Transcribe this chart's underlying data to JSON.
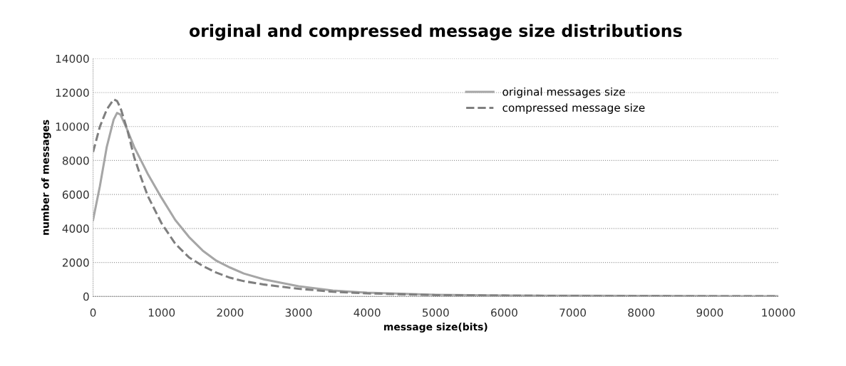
{
  "chart_data": {
    "type": "line",
    "title": "original and compressed message size distributions",
    "xlabel": "message size(bits)",
    "ylabel": "number of messages",
    "x": [
      0,
      100,
      200,
      300,
      350,
      400,
      500,
      600,
      700,
      800,
      1000,
      1200,
      1400,
      1600,
      1800,
      2000,
      2200,
      2500,
      3000,
      3500,
      4000,
      5000,
      6000,
      7000,
      8000,
      9000,
      10000
    ],
    "series": [
      {
        "name": "original messages size",
        "color": "#a6a6a6",
        "line_style": "solid",
        "values": [
          4500,
          6500,
          8800,
          10400,
          10800,
          10700,
          9800,
          8800,
          8000,
          7200,
          5800,
          4500,
          3500,
          2700,
          2100,
          1700,
          1350,
          1000,
          600,
          350,
          220,
          100,
          60,
          40,
          30,
          20,
          10
        ]
      },
      {
        "name": "compressed message size",
        "color": "#7f7f7f",
        "line_style": "dashed",
        "values": [
          8500,
          10000,
          11000,
          11600,
          11500,
          11100,
          9800,
          8200,
          7000,
          5900,
          4300,
          3100,
          2300,
          1800,
          1400,
          1100,
          900,
          700,
          450,
          280,
          180,
          80,
          50,
          30,
          20,
          15,
          10
        ]
      }
    ],
    "xlim": [
      0,
      10000
    ],
    "xticks": [
      0,
      1000,
      2000,
      3000,
      4000,
      5000,
      6000,
      7000,
      8000,
      9000,
      10000
    ],
    "ylim": [
      0,
      14000
    ],
    "yticks": [
      0,
      2000,
      4000,
      6000,
      8000,
      10000,
      12000,
      14000
    ],
    "grid": "y",
    "legend": "top right",
    "marker": "none"
  }
}
